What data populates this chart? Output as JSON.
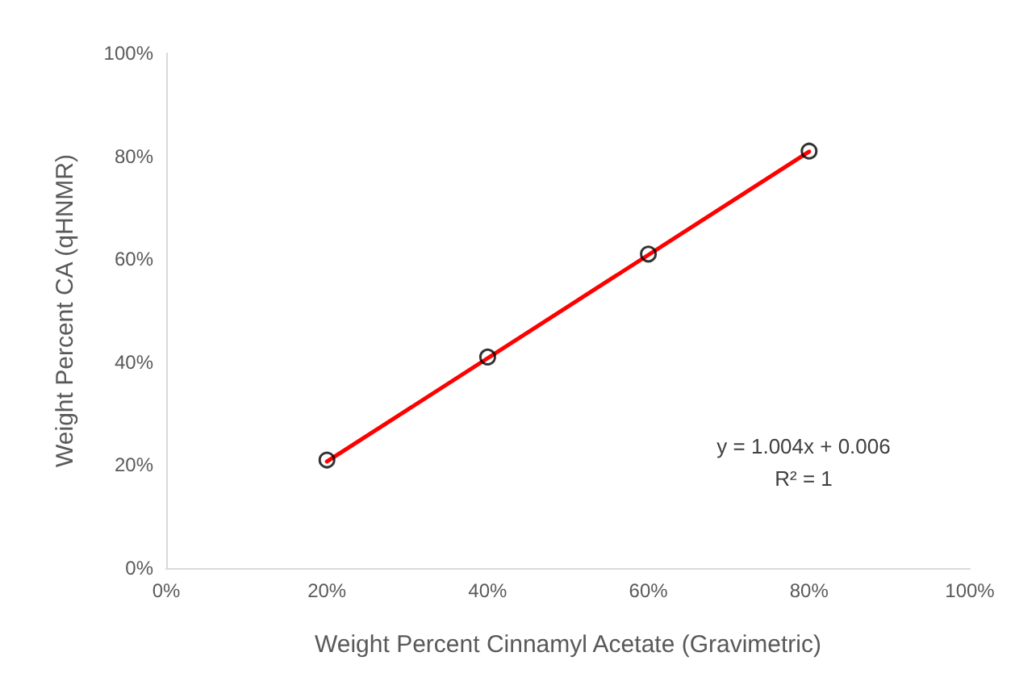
{
  "chart_data": {
    "type": "scatter",
    "xlabel": "Weight Percent Cinnamyl Acetate (Gravimetric)",
    "ylabel": "Weight Percent CA (qHNMR)",
    "series": [
      {
        "type": "scatter",
        "x": [
          20,
          40,
          60,
          80
        ],
        "values": [
          21,
          41,
          61,
          81
        ],
        "color": "#000000",
        "marker": "circle"
      },
      {
        "type": "line",
        "x": [
          20,
          80
        ],
        "values": [
          20.7,
          80.9
        ],
        "color": "#ff0000",
        "marker": "none",
        "line_style": "solid"
      }
    ],
    "xlim": [
      0,
      100
    ],
    "xticks": [
      {
        "value": 0,
        "label": "0%"
      },
      {
        "value": 20,
        "label": "20%"
      },
      {
        "value": 40,
        "label": "40%"
      },
      {
        "value": 60,
        "label": "60%"
      },
      {
        "value": 80,
        "label": "80%"
      },
      {
        "value": 100,
        "label": "100%"
      }
    ],
    "ylim": [
      0,
      100
    ],
    "yticks": [
      {
        "value": 0,
        "label": "0%"
      },
      {
        "value": 20,
        "label": "20%"
      },
      {
        "value": 40,
        "label": "40%"
      },
      {
        "value": 60,
        "label": "60%"
      },
      {
        "value": 80,
        "label": "80%"
      },
      {
        "value": 100,
        "label": "100%"
      }
    ],
    "grid": false,
    "annotations": [
      "y = 1.004x + 0.006",
      "R² = 1"
    ]
  }
}
